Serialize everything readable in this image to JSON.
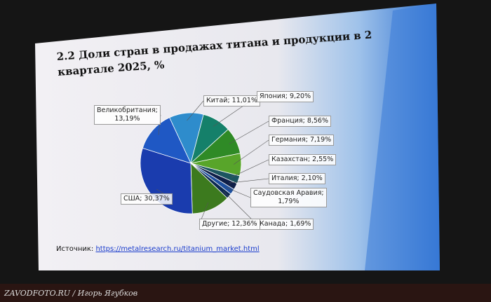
{
  "chart_data": {
    "type": "pie",
    "title": "2.2 Доли стран в продажах титана и продукции в 2 квартале 2025, %",
    "values": [
      11.01,
      9.2,
      8.56,
      7.19,
      2.55,
      2.1,
      1.79,
      1.69,
      12.36,
      30.37,
      13.19
    ],
    "value_labels": [
      "Китай; 11,01%",
      "Япония; 9,20%",
      "Франция; 8,56%",
      "Германия; 7,19%",
      "Казахстан; 2,55%",
      "Италия; 2,10%",
      "Саудовская Аравия;\n1,79%",
      "Канада; 1,69%",
      "Другие; 12,36%",
      "США; 30,37%",
      "Великобритания;\n13,19%"
    ],
    "colors": [
      "#2e8ccc",
      "#15806a",
      "#2f8a26",
      "#58a52a",
      "#1c5560",
      "#0f1f48",
      "#1d4f9e",
      "#0c2a52",
      "#3c7a1e",
      "#1a3cae",
      "#1f58c4"
    ],
    "source_label": "Источник:",
    "source_url": "https://metalresearch.ru/titanium_market.html"
  },
  "watermark": "ZAVODFOTO.RU / Игорь Ягубков"
}
